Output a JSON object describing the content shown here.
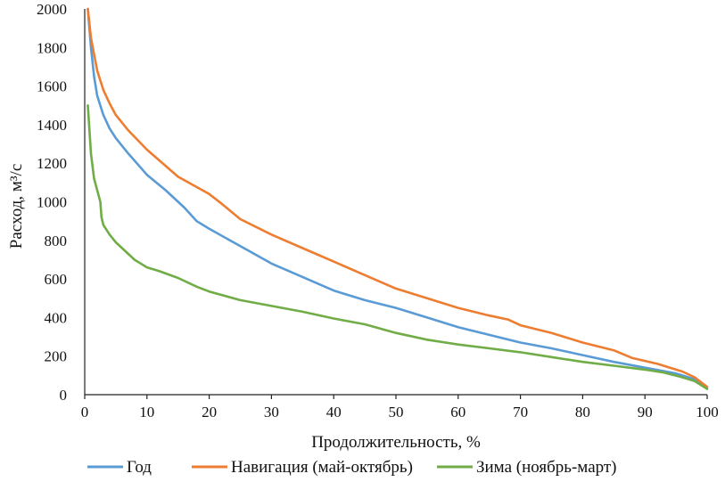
{
  "chart_data": {
    "type": "line",
    "title": "",
    "xlabel": "Продолжительность, %",
    "ylabel": "Расход, м³/с",
    "xlim": [
      0,
      100
    ],
    "ylim": [
      0,
      2000
    ],
    "xticks": [
      "0",
      "10",
      "20",
      "30",
      "40",
      "50",
      "60",
      "70",
      "80",
      "90",
      "100"
    ],
    "yticks": [
      "0",
      "200",
      "400",
      "600",
      "800",
      "1000",
      "1200",
      "1400",
      "1600",
      "1800",
      "2000"
    ],
    "grid": false,
    "legend_position": "bottom",
    "series": [
      {
        "name": "Год",
        "color": "#5b9bd5",
        "x": [
          0.5,
          1,
          1.5,
          2,
          3,
          4,
          5,
          7,
          10,
          13,
          16,
          18,
          20,
          25,
          30,
          35,
          40,
          45,
          50,
          55,
          60,
          65,
          70,
          75,
          80,
          85,
          90,
          95,
          98,
          100
        ],
        "y": [
          2000,
          1800,
          1650,
          1550,
          1450,
          1380,
          1330,
          1250,
          1140,
          1060,
          970,
          900,
          860,
          770,
          680,
          610,
          540,
          490,
          450,
          400,
          350,
          310,
          270,
          240,
          205,
          170,
          140,
          110,
          80,
          30
        ]
      },
      {
        "name": "Навигация (май-октябрь)",
        "color": "#ed7d31",
        "x": [
          0.5,
          1,
          2,
          3,
          4,
          5,
          7,
          10,
          15,
          20,
          22,
          25,
          30,
          35,
          40,
          45,
          50,
          55,
          60,
          65,
          68,
          70,
          75,
          80,
          85,
          88,
          92,
          96,
          98,
          100
        ],
        "y": [
          2000,
          1850,
          1680,
          1580,
          1510,
          1450,
          1370,
          1270,
          1130,
          1040,
          990,
          910,
          830,
          760,
          690,
          620,
          550,
          500,
          450,
          410,
          390,
          360,
          320,
          270,
          230,
          190,
          160,
          120,
          90,
          40
        ]
      },
      {
        "name": "Зима (ноябрь-март)",
        "color": "#70ad47",
        "x": [
          0.5,
          0.8,
          1,
          1.5,
          2,
          2.5,
          2.7,
          3,
          4,
          5,
          6,
          7,
          8,
          9,
          10,
          12,
          15,
          18,
          20,
          25,
          30,
          35,
          40,
          45,
          50,
          55,
          60,
          65,
          70,
          75,
          80,
          85,
          90,
          93,
          96,
          98,
          100
        ],
        "y": [
          1500,
          1350,
          1250,
          1120,
          1060,
          1000,
          920,
          880,
          830,
          790,
          760,
          730,
          700,
          680,
          660,
          640,
          605,
          560,
          535,
          490,
          460,
          430,
          395,
          365,
          320,
          285,
          260,
          240,
          220,
          195,
          170,
          150,
          130,
          115,
          90,
          70,
          30
        ]
      }
    ]
  }
}
